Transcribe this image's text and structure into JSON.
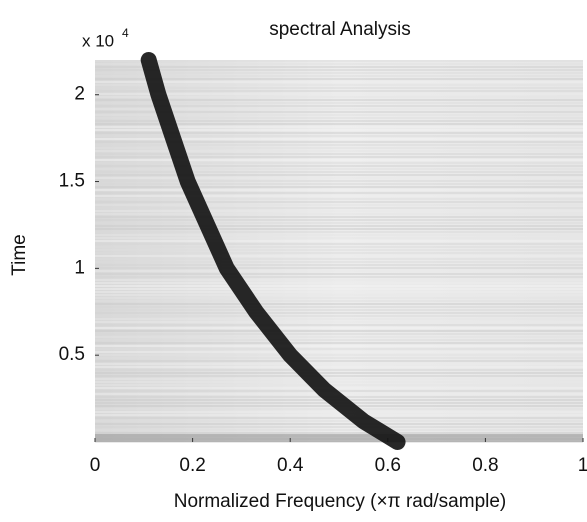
{
  "chart_data": {
    "type": "line",
    "title": "spectral Analysis",
    "xlabel": "Normalized Frequency  (×π rad/sample)",
    "ylabel": "Time",
    "y_scale_label": "x 10",
    "y_scale_exponent": "4",
    "x": [
      0.11,
      0.13,
      0.16,
      0.19,
      0.23,
      0.27,
      0.33,
      0.4,
      0.47,
      0.55,
      0.62
    ],
    "series": [
      {
        "name": "Time",
        "color": "#111111",
        "values": [
          2.2,
          2.0,
          1.75,
          1.5,
          1.25,
          1.0,
          0.75,
          0.5,
          0.3,
          0.12,
          0.0
        ]
      }
    ],
    "xlim": [
      0,
      1
    ],
    "xticks": [
      0,
      0.2,
      0.4,
      0.6,
      0.8,
      1
    ],
    "ylim": [
      0,
      2.2
    ],
    "yticks": [
      0.5,
      1,
      1.5,
      2
    ]
  }
}
